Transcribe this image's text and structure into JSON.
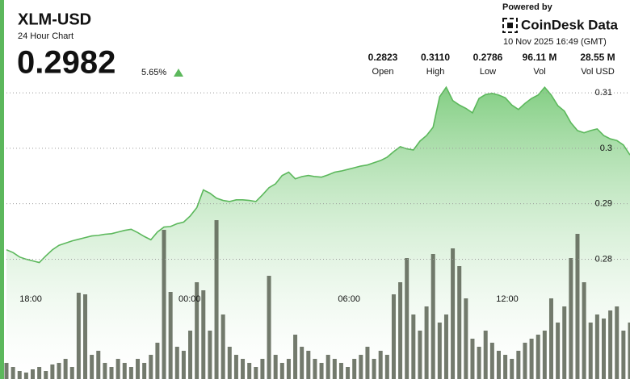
{
  "header": {
    "symbol": "XLM-USD",
    "subtitle": "24 Hour Chart",
    "price": "0.2982",
    "change": "5.65%",
    "powered_by": "Powered by",
    "brand": "CoinDesk Data",
    "timestamp": "10 Nov 2025 16:49 (GMT)"
  },
  "stats": [
    {
      "value": "0.2823",
      "label": "Open"
    },
    {
      "value": "0.3110",
      "label": "High"
    },
    {
      "value": "0.2786",
      "label": "Low"
    },
    {
      "value": "96.11 M",
      "label": "Vol"
    },
    {
      "value": "28.55 M",
      "label": "Vol USD"
    }
  ],
  "chart_data": {
    "type": "line",
    "xlim": [
      0,
      95
    ],
    "xticks": [
      {
        "value": 3.7,
        "label": "18:00"
      },
      {
        "value": 27.9,
        "label": "00:00"
      },
      {
        "value": 52.2,
        "label": "06:00"
      },
      {
        "value": 76.3,
        "label": "12:00"
      }
    ],
    "ylim": [
      0.2584,
      0.3122
    ],
    "yticks": [
      0.31,
      0.3,
      0.29,
      0.28
    ],
    "grid": true,
    "y2lim": [
      0,
      370
    ],
    "series": [
      {
        "type": "line",
        "color": "#5cb85c",
        "values": [
          0.2817,
          0.2812,
          0.2804,
          0.28,
          0.2797,
          0.2794,
          0.2806,
          0.2817,
          0.2825,
          0.2829,
          0.2833,
          0.2836,
          0.2839,
          0.2842,
          0.2843,
          0.2845,
          0.2846,
          0.2849,
          0.2852,
          0.2854,
          0.2848,
          0.2841,
          0.2835,
          0.2849,
          0.2858,
          0.2859,
          0.2864,
          0.2867,
          0.2878,
          0.2893,
          0.2925,
          0.2919,
          0.291,
          0.2906,
          0.2904,
          0.2907,
          0.2907,
          0.2906,
          0.2904,
          0.2916,
          0.2929,
          0.2936,
          0.2951,
          0.2957,
          0.2945,
          0.2949,
          0.2951,
          0.2949,
          0.2948,
          0.2952,
          0.2957,
          0.2959,
          0.2962,
          0.2965,
          0.2968,
          0.297,
          0.2974,
          0.2978,
          0.2984,
          0.2994,
          0.3003,
          0.2999,
          0.2997,
          0.3013,
          0.3023,
          0.3038,
          0.3093,
          0.311,
          0.3086,
          0.3078,
          0.3072,
          0.3064,
          0.309,
          0.3097,
          0.3099,
          0.3096,
          0.3091,
          0.3078,
          0.307,
          0.3081,
          0.309,
          0.3096,
          0.311,
          0.3096,
          0.3077,
          0.3067,
          0.3046,
          0.3032,
          0.3028,
          0.3032,
          0.3035,
          0.3023,
          0.3017,
          0.3014,
          0.3006,
          0.2988
        ]
      },
      {
        "type": "bar",
        "axis": "y2",
        "color": "#5b6353",
        "values": [
          20,
          15,
          10,
          8,
          12,
          15,
          10,
          18,
          20,
          25,
          15,
          107,
          105,
          30,
          35,
          20,
          15,
          25,
          20,
          15,
          25,
          20,
          30,
          45,
          185,
          108,
          40,
          35,
          60,
          120,
          110,
          60,
          197,
          80,
          40,
          30,
          25,
          20,
          15,
          25,
          128,
          30,
          20,
          25,
          55,
          40,
          35,
          25,
          20,
          30,
          25,
          20,
          15,
          25,
          30,
          40,
          25,
          35,
          30,
          105,
          120,
          150,
          80,
          60,
          90,
          155,
          70,
          80,
          162,
          140,
          100,
          50,
          40,
          60,
          45,
          35,
          30,
          25,
          35,
          45,
          50,
          55,
          60,
          100,
          70,
          90,
          150,
          180,
          120,
          70,
          80,
          75,
          85,
          90,
          60,
          70
        ]
      }
    ]
  }
}
